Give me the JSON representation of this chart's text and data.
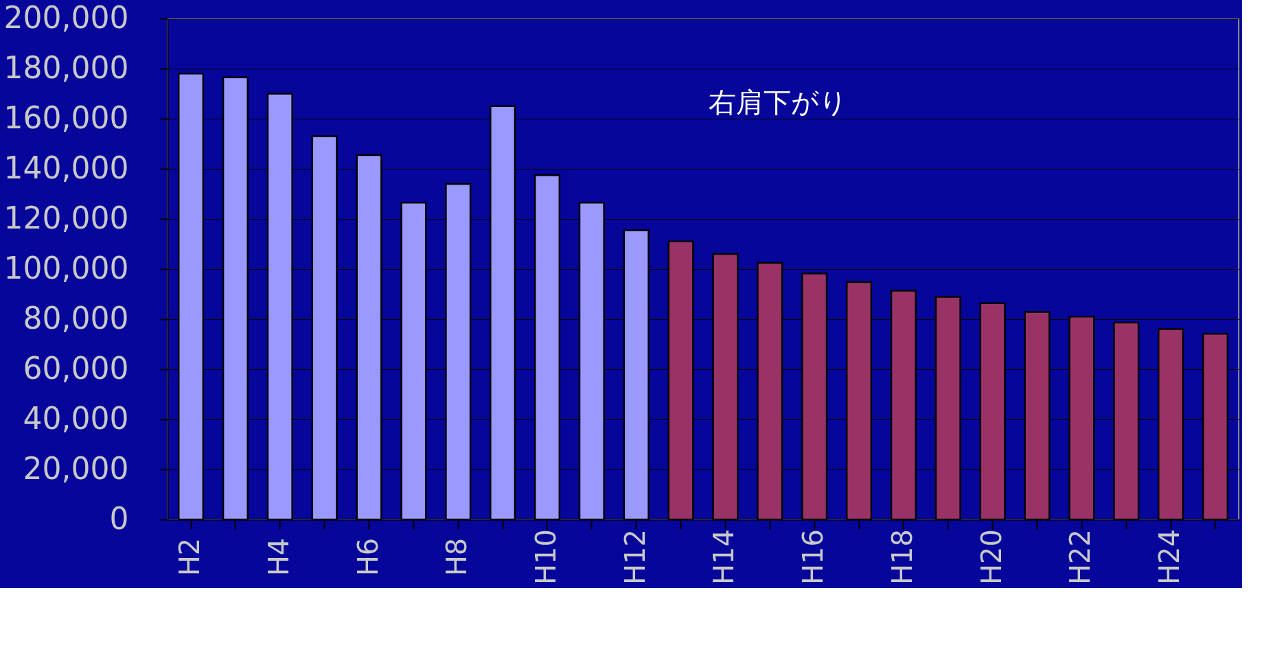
{
  "chart_data": {
    "type": "bar",
    "categories": [
      "H2",
      null,
      "H4",
      null,
      "H6",
      null,
      "H8",
      null,
      "H10",
      null,
      "H12",
      null,
      "H14",
      null,
      "H16",
      null,
      "H18",
      null,
      "H20",
      null,
      "H22",
      null,
      "H24",
      null
    ],
    "values": [
      178000,
      176500,
      170000,
      153000,
      145500,
      126500,
      134000,
      165000,
      137500,
      126500,
      115500,
      111000,
      106000,
      102500,
      98200,
      94800,
      91400,
      88900,
      86400,
      82900,
      81000,
      78600,
      76000,
      74200
    ],
    "colors": [
      "#9999ff",
      "#9999ff",
      "#9999ff",
      "#9999ff",
      "#9999ff",
      "#9999ff",
      "#9999ff",
      "#9999ff",
      "#9999ff",
      "#9999ff",
      "#9999ff",
      "#993366",
      "#993366",
      "#993366",
      "#993366",
      "#993366",
      "#993366",
      "#993366",
      "#993366",
      "#993366",
      "#993366",
      "#993366",
      "#993366",
      "#993366"
    ],
    "ylim": [
      0,
      200000
    ],
    "yticks": [
      {
        "value": 0,
        "label": "0"
      },
      {
        "value": 20000,
        "label": "20,000"
      },
      {
        "value": 40000,
        "label": "40,000"
      },
      {
        "value": 60000,
        "label": "60,000"
      },
      {
        "value": 80000,
        "label": "80,000"
      },
      {
        "value": 100000,
        "label": "100,000"
      },
      {
        "value": 120000,
        "label": "120,000"
      },
      {
        "value": 140000,
        "label": "140,000"
      },
      {
        "value": 160000,
        "label": "160,000"
      },
      {
        "value": 180000,
        "label": "180,000"
      },
      {
        "value": 200000,
        "label": "200,000"
      }
    ],
    "grid": "y",
    "annotations": [
      "右肩下がり"
    ]
  }
}
